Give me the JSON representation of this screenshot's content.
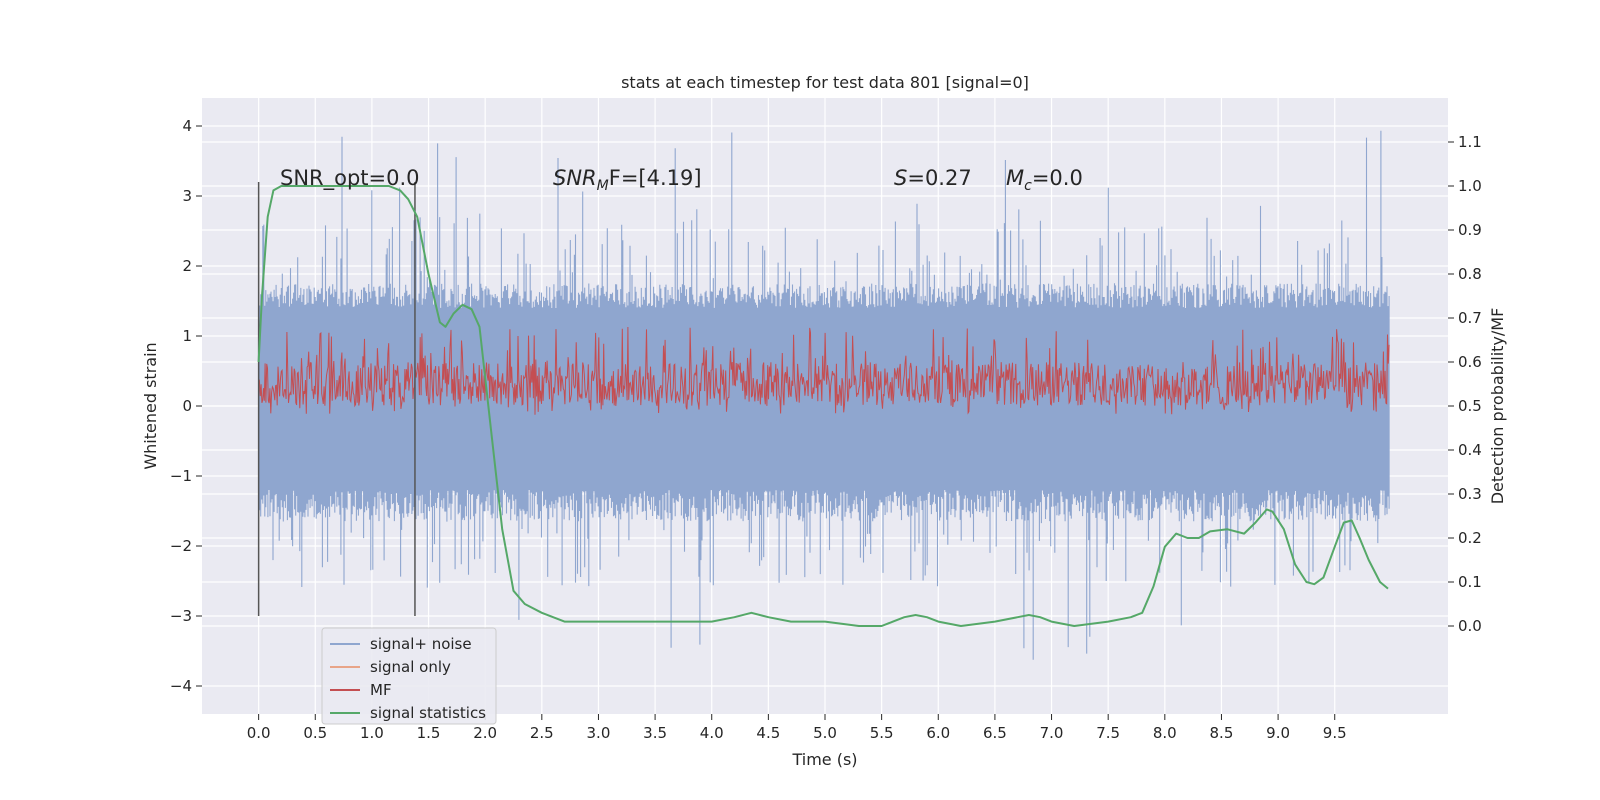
{
  "chart_data": {
    "type": "line",
    "title": "stats at each timestep for test data 801 [signal=0]",
    "xlabel": "Time (s)",
    "ylabel_left": "Whitened strain",
    "ylabel_right": "Detection probability/MF",
    "xlim": [
      -0.5,
      10.5
    ],
    "ylim_left": [
      -4.4,
      4.4
    ],
    "ylim_right": [
      -0.2,
      1.2
    ],
    "xticks": [
      0.0,
      0.5,
      1.0,
      1.5,
      2.0,
      2.5,
      3.0,
      3.5,
      4.0,
      4.5,
      5.0,
      5.5,
      6.0,
      6.5,
      7.0,
      7.5,
      8.0,
      8.5,
      9.0,
      9.5
    ],
    "xtick_labels": [
      "0.0",
      "0.5",
      "1.0",
      "1.5",
      "2.0",
      "2.5",
      "3.0",
      "3.5",
      "4.0",
      "4.5",
      "5.0",
      "5.5",
      "6.0",
      "6.5",
      "7.0",
      "7.5",
      "8.0",
      "8.5",
      "9.0",
      "9.5"
    ],
    "yticks_left": [
      4,
      3,
      2,
      1,
      0,
      -1,
      -2,
      -3,
      -4
    ],
    "ytick_labels_left": [
      "4",
      "3",
      "2",
      "1",
      "0",
      "−1",
      "−2",
      "−3",
      "−4"
    ],
    "yticks_right": [
      1.1,
      1.0,
      0.9,
      0.8,
      0.7,
      0.6,
      0.5,
      0.4,
      0.3,
      0.2,
      0.1,
      0.0
    ],
    "ytick_labels_right": [
      "1.1",
      "1.0",
      "0.9",
      "0.8",
      "0.7",
      "0.6",
      "0.5",
      "0.4",
      "0.3",
      "0.2",
      "0.1",
      "0.0"
    ],
    "grid": true,
    "legend_position": "lower-left",
    "annotations": {
      "snr_opt": "SNR_opt=0.0",
      "snr_mf_symbol": "SNR",
      "snr_mf_sub": "M",
      "snr_mf_rest": "F=[4.19]",
      "s_symbol": "S",
      "s_rest": "=0.27",
      "mc_symbol": "M",
      "mc_sub": "c",
      "mc_rest": "=0.0"
    },
    "vertical_markers": [
      {
        "x": 0.0,
        "y_top": 3.2,
        "y_bottom": -3.0
      },
      {
        "x": 1.38,
        "y_top": 3.2,
        "y_bottom": -3.0
      }
    ],
    "series": [
      {
        "name": "signal+ noise",
        "color": "#8fa6cf",
        "axis": "left",
        "kind": "noise",
        "x_range": [
          0.0,
          9.98
        ],
        "typical_range": [
          -1.2,
          1.4
        ],
        "extreme_range": [
          -3.7,
          4.05
        ]
      },
      {
        "name": "signal only",
        "color": "#e8a488",
        "axis": "left",
        "values": []
      },
      {
        "name": "MF",
        "color": "#c44e52",
        "axis": "right",
        "kind": "noise",
        "x_range": [
          0.0,
          9.98
        ],
        "typical_range": [
          0.5,
          0.6
        ],
        "extreme_range": [
          0.48,
          0.68
        ]
      },
      {
        "name": "signal statistics",
        "color": "#55a868",
        "axis": "right",
        "x": [
          0.0,
          0.03,
          0.08,
          0.13,
          0.2,
          0.3,
          0.5,
          0.8,
          1.0,
          1.15,
          1.25,
          1.32,
          1.4,
          1.5,
          1.6,
          1.65,
          1.72,
          1.8,
          1.88,
          1.95,
          2.05,
          2.15,
          2.25,
          2.35,
          2.5,
          2.7,
          3.0,
          3.5,
          4.0,
          4.2,
          4.35,
          4.5,
          4.7,
          5.0,
          5.3,
          5.5,
          5.6,
          5.7,
          5.8,
          5.9,
          6.0,
          6.2,
          6.5,
          6.7,
          6.8,
          6.9,
          7.0,
          7.2,
          7.5,
          7.7,
          7.8,
          7.9,
          8.0,
          8.1,
          8.2,
          8.3,
          8.4,
          8.55,
          8.7,
          8.8,
          8.9,
          8.95,
          9.05,
          9.15,
          9.25,
          9.32,
          9.4,
          9.5,
          9.58,
          9.65,
          9.72,
          9.8,
          9.9,
          9.97
        ],
        "values": [
          0.6,
          0.75,
          0.93,
          0.99,
          1.0,
          1.0,
          1.0,
          1.0,
          1.0,
          1.0,
          0.99,
          0.97,
          0.93,
          0.8,
          0.69,
          0.68,
          0.71,
          0.73,
          0.72,
          0.68,
          0.45,
          0.22,
          0.08,
          0.05,
          0.03,
          0.01,
          0.01,
          0.01,
          0.01,
          0.02,
          0.03,
          0.02,
          0.01,
          0.01,
          0.0,
          0.0,
          0.01,
          0.02,
          0.025,
          0.02,
          0.01,
          0.0,
          0.01,
          0.02,
          0.025,
          0.02,
          0.01,
          0.0,
          0.01,
          0.02,
          0.03,
          0.09,
          0.18,
          0.21,
          0.2,
          0.2,
          0.215,
          0.22,
          0.21,
          0.235,
          0.265,
          0.26,
          0.22,
          0.14,
          0.1,
          0.095,
          0.11,
          0.18,
          0.235,
          0.24,
          0.2,
          0.15,
          0.1,
          0.085
        ]
      }
    ]
  }
}
